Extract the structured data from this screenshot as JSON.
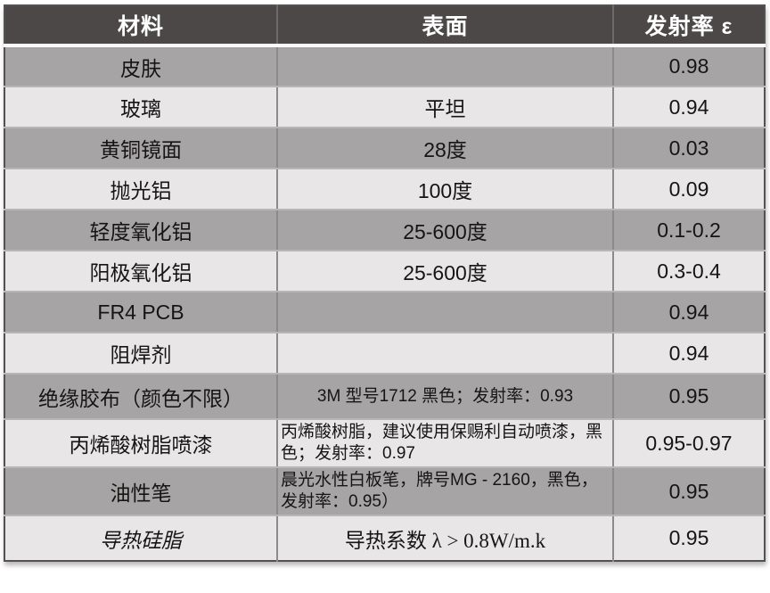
{
  "style": {
    "header_bg": "#4c4848",
    "header_text": "#ffffff",
    "row_dark_bg": "#a7a4a5",
    "row_light_bg": "#e8e6e7",
    "body_text": "#161514"
  },
  "chart_data": {
    "type": "table",
    "columns": [
      "材料",
      "表面",
      "发射率 ε"
    ],
    "rows": [
      [
        "皮肤",
        "",
        "0.98"
      ],
      [
        "玻璃",
        "平坦",
        "0.94"
      ],
      [
        "黄铜镜面",
        "28度",
        "0.03"
      ],
      [
        "抛光铝",
        "100度",
        "0.09"
      ],
      [
        "轻度氧化铝",
        "25-600度",
        "0.1-0.2"
      ],
      [
        "阳极氧化铝",
        "25-600度",
        "0.3-0.4"
      ],
      [
        "FR4 PCB",
        "",
        "0.94"
      ],
      [
        "阻焊剂",
        "",
        "0.94"
      ],
      [
        "绝缘胶布（颜色不限）",
        "3M 型号1712 黑色；发射率：0.93",
        "0.95"
      ],
      [
        "丙烯酸树脂喷漆",
        "丙烯酸树脂，建议使用保赐利自动喷漆，黑色；发射率：0.97",
        "0.95-0.97"
      ],
      [
        "油性笔",
        "晨光水性白板笔，牌号MG - 2160，黑色，发射率：0.95）",
        "0.95"
      ],
      [
        "导热硅脂",
        "导热系数 λ > 0.8W/m.k",
        "0.95"
      ]
    ]
  }
}
